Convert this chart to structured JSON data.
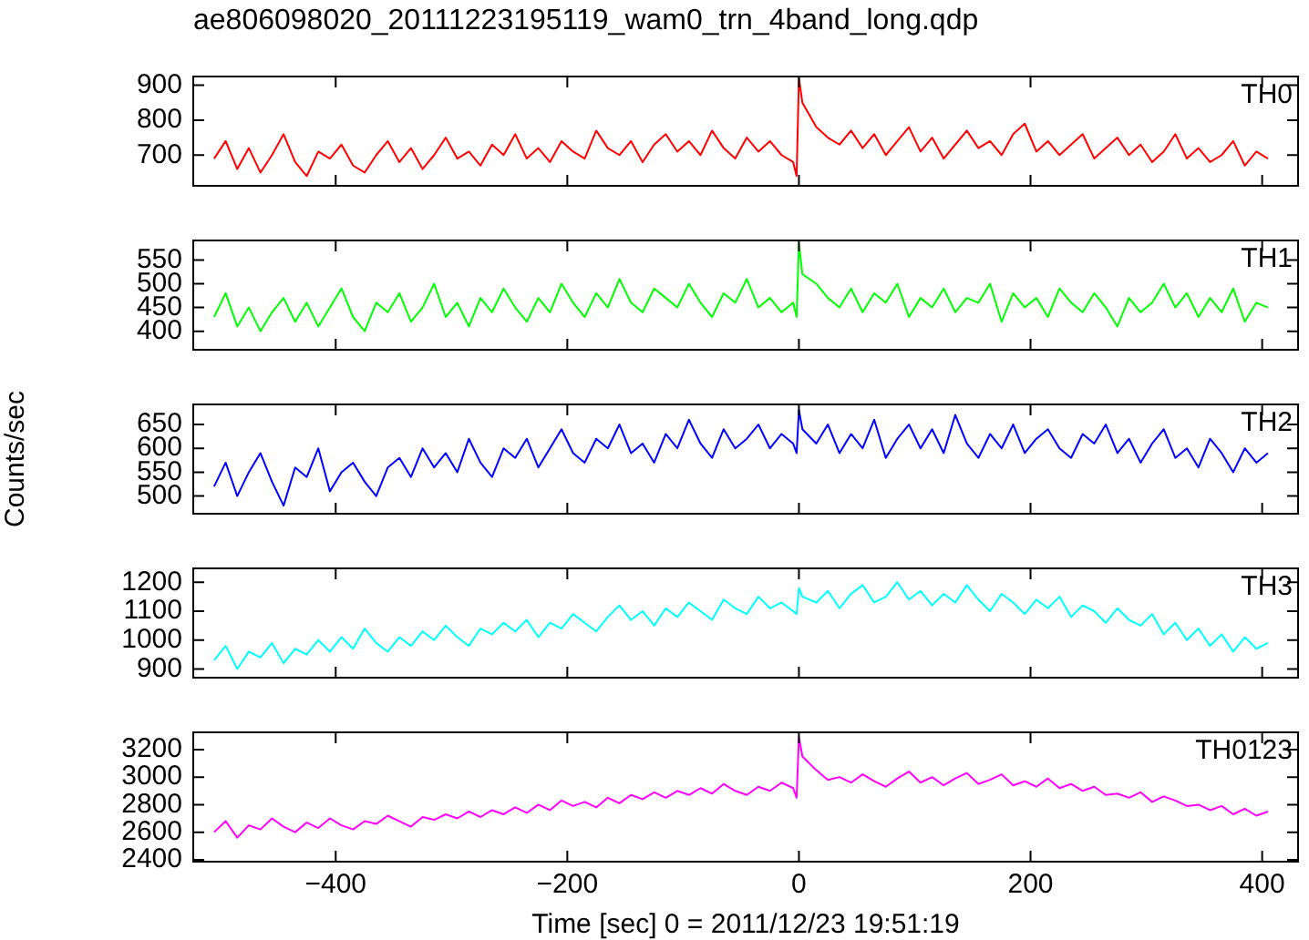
{
  "chart_data": [
    {
      "type": "line",
      "title": "ae806098020_20111223195119_wam0_trn_4band_long.qdp",
      "xlim": [
        -523,
        431
      ],
      "xticks": [
        -400,
        -200,
        0,
        200,
        400
      ],
      "ylim": [
        612,
        925
      ],
      "yticks": [
        700,
        800,
        900
      ],
      "tick_labels": "y",
      "x": [
        -505,
        -495,
        -485,
        -475,
        -465,
        -455,
        -445,
        -435,
        -425,
        -415,
        -405,
        -395,
        -385,
        -375,
        -365,
        -355,
        -345,
        -335,
        -325,
        -315,
        -305,
        -295,
        -285,
        -275,
        -265,
        -255,
        -245,
        -235,
        -225,
        -215,
        -205,
        -195,
        -185,
        -175,
        -165,
        -155,
        -145,
        -135,
        -125,
        -115,
        -105,
        -95,
        -85,
        -75,
        -65,
        -55,
        -45,
        -35,
        -25,
        -15,
        -5,
        -2,
        0,
        3,
        15,
        25,
        35,
        45,
        55,
        65,
        75,
        85,
        95,
        105,
        115,
        125,
        135,
        145,
        155,
        165,
        175,
        185,
        195,
        205,
        215,
        225,
        235,
        245,
        255,
        265,
        275,
        285,
        295,
        305,
        315,
        325,
        335,
        345,
        355,
        365,
        375,
        385,
        395,
        405
      ],
      "series": [
        {
          "name": "TH0",
          "color": "#ff0000",
          "values": [
            690,
            740,
            660,
            720,
            650,
            700,
            760,
            680,
            640,
            710,
            690,
            730,
            670,
            650,
            700,
            740,
            680,
            720,
            660,
            700,
            750,
            690,
            710,
            670,
            730,
            700,
            760,
            690,
            720,
            680,
            740,
            710,
            690,
            770,
            720,
            700,
            740,
            680,
            730,
            760,
            710,
            740,
            700,
            770,
            720,
            690,
            750,
            710,
            740,
            700,
            680,
            640,
            920,
            850,
            780,
            750,
            730,
            770,
            720,
            760,
            700,
            740,
            780,
            710,
            750,
            690,
            730,
            770,
            720,
            740,
            700,
            760,
            790,
            710,
            740,
            700,
            730,
            760,
            690,
            720,
            750,
            700,
            730,
            680,
            710,
            760,
            690,
            720,
            680,
            700,
            740,
            670,
            710,
            690
          ]
        }
      ]
    },
    {
      "type": "line",
      "xlim": [
        -523,
        431
      ],
      "xticks": [
        -400,
        -200,
        0,
        200,
        400
      ],
      "ylim": [
        361,
        591
      ],
      "yticks": [
        400,
        450,
        500,
        550
      ],
      "tick_labels": "y",
      "x": [
        -505,
        -495,
        -485,
        -475,
        -465,
        -455,
        -445,
        -435,
        -425,
        -415,
        -405,
        -395,
        -385,
        -375,
        -365,
        -355,
        -345,
        -335,
        -325,
        -315,
        -305,
        -295,
        -285,
        -275,
        -265,
        -255,
        -245,
        -235,
        -225,
        -215,
        -205,
        -195,
        -185,
        -175,
        -165,
        -155,
        -145,
        -135,
        -125,
        -115,
        -105,
        -95,
        -85,
        -75,
        -65,
        -55,
        -45,
        -35,
        -25,
        -15,
        -5,
        -2,
        0,
        3,
        15,
        25,
        35,
        45,
        55,
        65,
        75,
        85,
        95,
        105,
        115,
        125,
        135,
        145,
        155,
        165,
        175,
        185,
        195,
        205,
        215,
        225,
        235,
        245,
        255,
        265,
        275,
        285,
        295,
        305,
        315,
        325,
        335,
        345,
        355,
        365,
        375,
        385,
        395,
        405
      ],
      "series": [
        {
          "name": "TH1",
          "color": "#00ff00",
          "values": [
            430,
            480,
            410,
            450,
            400,
            440,
            470,
            420,
            460,
            410,
            450,
            490,
            430,
            400,
            460,
            440,
            480,
            420,
            450,
            500,
            430,
            460,
            410,
            470,
            440,
            490,
            450,
            420,
            470,
            440,
            500,
            460,
            430,
            480,
            450,
            510,
            460,
            440,
            490,
            470,
            450,
            500,
            460,
            430,
            480,
            460,
            510,
            450,
            470,
            440,
            460,
            430,
            585,
            520,
            500,
            470,
            450,
            490,
            440,
            480,
            460,
            500,
            430,
            470,
            450,
            490,
            440,
            470,
            460,
            500,
            420,
            480,
            450,
            470,
            430,
            490,
            460,
            440,
            480,
            450,
            410,
            470,
            440,
            460,
            500,
            450,
            480,
            430,
            470,
            440,
            490,
            420,
            460,
            450
          ]
        }
      ]
    },
    {
      "type": "line",
      "ylabel": "Counts/sec",
      "xlim": [
        -523,
        431
      ],
      "xticks": [
        -400,
        -200,
        0,
        200,
        400
      ],
      "ylim": [
        463,
        692
      ],
      "yticks": [
        500,
        550,
        600,
        650
      ],
      "tick_labels": "y",
      "x": [
        -505,
        -495,
        -485,
        -475,
        -465,
        -455,
        -445,
        -435,
        -425,
        -415,
        -405,
        -395,
        -385,
        -375,
        -365,
        -355,
        -345,
        -335,
        -325,
        -315,
        -305,
        -295,
        -285,
        -275,
        -265,
        -255,
        -245,
        -235,
        -225,
        -215,
        -205,
        -195,
        -185,
        -175,
        -165,
        -155,
        -145,
        -135,
        -125,
        -115,
        -105,
        -95,
        -85,
        -75,
        -65,
        -55,
        -45,
        -35,
        -25,
        -15,
        -5,
        -2,
        0,
        3,
        15,
        25,
        35,
        45,
        55,
        65,
        75,
        85,
        95,
        105,
        115,
        125,
        135,
        145,
        155,
        165,
        175,
        185,
        195,
        205,
        215,
        225,
        235,
        245,
        255,
        265,
        275,
        285,
        295,
        305,
        315,
        325,
        335,
        345,
        355,
        365,
        375,
        385,
        395,
        405
      ],
      "series": [
        {
          "name": "TH2",
          "color": "#0000ff",
          "values": [
            520,
            570,
            500,
            550,
            590,
            530,
            480,
            560,
            540,
            600,
            510,
            550,
            570,
            530,
            500,
            560,
            580,
            540,
            600,
            560,
            590,
            550,
            620,
            570,
            540,
            600,
            580,
            620,
            560,
            600,
            640,
            590,
            570,
            620,
            600,
            650,
            590,
            610,
            570,
            630,
            600,
            660,
            610,
            580,
            640,
            600,
            620,
            650,
            600,
            630,
            610,
            590,
            680,
            640,
            610,
            650,
            590,
            630,
            600,
            660,
            580,
            620,
            650,
            600,
            640,
            590,
            670,
            610,
            580,
            630,
            600,
            650,
            590,
            620,
            640,
            600,
            580,
            630,
            610,
            650,
            590,
            620,
            570,
            610,
            640,
            580,
            600,
            560,
            620,
            590,
            550,
            600,
            570,
            590
          ]
        }
      ]
    },
    {
      "type": "line",
      "xlim": [
        -523,
        431
      ],
      "xticks": [
        -400,
        -200,
        0,
        200,
        400
      ],
      "ylim": [
        870,
        1248
      ],
      "yticks": [
        900,
        1000,
        1100,
        1200
      ],
      "tick_labels": "y",
      "x": [
        -505,
        -495,
        -485,
        -475,
        -465,
        -455,
        -445,
        -435,
        -425,
        -415,
        -405,
        -395,
        -385,
        -375,
        -365,
        -355,
        -345,
        -335,
        -325,
        -315,
        -305,
        -295,
        -285,
        -275,
        -265,
        -255,
        -245,
        -235,
        -225,
        -215,
        -205,
        -195,
        -185,
        -175,
        -165,
        -155,
        -145,
        -135,
        -125,
        -115,
        -105,
        -95,
        -85,
        -75,
        -65,
        -55,
        -45,
        -35,
        -25,
        -15,
        -5,
        -2,
        0,
        3,
        15,
        25,
        35,
        45,
        55,
        65,
        75,
        85,
        95,
        105,
        115,
        125,
        135,
        145,
        155,
        165,
        175,
        185,
        195,
        205,
        215,
        225,
        235,
        245,
        255,
        265,
        275,
        285,
        295,
        305,
        315,
        325,
        335,
        345,
        355,
        365,
        375,
        385,
        395,
        405
      ],
      "series": [
        {
          "name": "TH3",
          "color": "#00ffff",
          "values": [
            930,
            980,
            900,
            960,
            940,
            990,
            920,
            970,
            950,
            1000,
            960,
            1010,
            970,
            1040,
            990,
            960,
            1010,
            980,
            1030,
            1000,
            1050,
            1010,
            980,
            1040,
            1020,
            1060,
            1030,
            1070,
            1010,
            1060,
            1040,
            1090,
            1060,
            1030,
            1080,
            1120,
            1070,
            1100,
            1050,
            1110,
            1080,
            1130,
            1100,
            1070,
            1140,
            1110,
            1090,
            1150,
            1110,
            1130,
            1100,
            1090,
            1180,
            1150,
            1130,
            1170,
            1110,
            1160,
            1190,
            1130,
            1150,
            1200,
            1140,
            1170,
            1120,
            1160,
            1130,
            1190,
            1140,
            1100,
            1160,
            1130,
            1090,
            1140,
            1110,
            1150,
            1080,
            1120,
            1100,
            1060,
            1110,
            1070,
            1050,
            1090,
            1020,
            1060,
            1000,
            1040,
            980,
            1020,
            960,
            1010,
            970,
            990
          ]
        }
      ]
    },
    {
      "type": "line",
      "xlabel": "Time [sec] 0 = 2011/12/23 19:51:19",
      "xlim": [
        -523,
        431
      ],
      "xticks": [
        -400,
        -200,
        0,
        200,
        400
      ],
      "ylim": [
        2386,
        3325
      ],
      "yticks": [
        2400,
        2600,
        2800,
        3000,
        3200
      ],
      "x": [
        -505,
        -495,
        -485,
        -475,
        -465,
        -455,
        -445,
        -435,
        -425,
        -415,
        -405,
        -395,
        -385,
        -375,
        -365,
        -355,
        -345,
        -335,
        -325,
        -315,
        -305,
        -295,
        -285,
        -275,
        -265,
        -255,
        -245,
        -235,
        -225,
        -215,
        -205,
        -195,
        -185,
        -175,
        -165,
        -155,
        -145,
        -135,
        -125,
        -115,
        -105,
        -95,
        -85,
        -75,
        -65,
        -55,
        -45,
        -35,
        -25,
        -15,
        -5,
        -2,
        0,
        3,
        15,
        25,
        35,
        45,
        55,
        65,
        75,
        85,
        95,
        105,
        115,
        125,
        135,
        145,
        155,
        165,
        175,
        185,
        195,
        205,
        215,
        225,
        235,
        245,
        255,
        265,
        275,
        285,
        295,
        305,
        315,
        325,
        335,
        345,
        355,
        365,
        375,
        385,
        395,
        405
      ],
      "series": [
        {
          "name": "TH0123",
          "color": "#ff00ff",
          "values": [
            2600,
            2680,
            2560,
            2650,
            2620,
            2700,
            2640,
            2600,
            2670,
            2630,
            2700,
            2650,
            2620,
            2680,
            2660,
            2720,
            2680,
            2640,
            2710,
            2690,
            2730,
            2700,
            2750,
            2710,
            2760,
            2730,
            2780,
            2740,
            2800,
            2760,
            2830,
            2790,
            2820,
            2780,
            2850,
            2810,
            2870,
            2840,
            2890,
            2850,
            2900,
            2870,
            2920,
            2880,
            2950,
            2900,
            2870,
            2930,
            2900,
            2960,
            2920,
            2850,
            3290,
            3150,
            3050,
            2980,
            3000,
            2960,
            3020,
            2970,
            2930,
            2990,
            3040,
            2960,
            3000,
            2940,
            2990,
            3030,
            2950,
            2980,
            3020,
            2940,
            2970,
            2930,
            2990,
            2920,
            2950,
            2900,
            2930,
            2870,
            2880,
            2850,
            2890,
            2820,
            2860,
            2830,
            2790,
            2800,
            2760,
            2790,
            2730,
            2770,
            2720,
            2750
          ]
        }
      ]
    }
  ]
}
